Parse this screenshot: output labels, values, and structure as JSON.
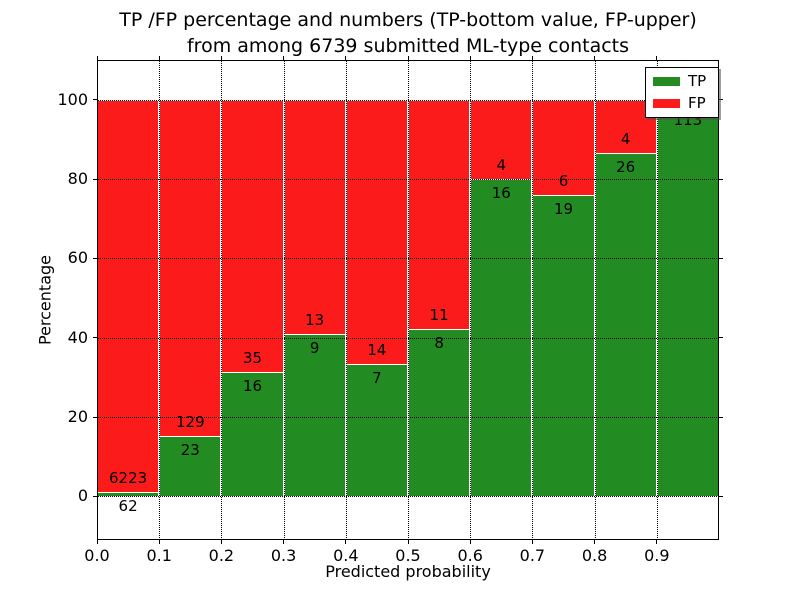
{
  "chart_data": {
    "type": "bar",
    "stacked": true,
    "normalized_to_percent": true,
    "title_line1": "TP /FP percentage and numbers (TP-bottom value, FP-upper)",
    "title_line2": "from among 6739 submitted ML-type contacts",
    "xlabel": "Predicted probability",
    "ylabel": "Percentage",
    "xlim": [
      0.0,
      1.0
    ],
    "ylim": [
      -11,
      110
    ],
    "grid": "dotted",
    "x_ticks": [
      {
        "value": 0.0,
        "label": "0.0"
      },
      {
        "value": 0.1,
        "label": "0.1"
      },
      {
        "value": 0.2,
        "label": "0.2"
      },
      {
        "value": 0.3,
        "label": "0.3"
      },
      {
        "value": 0.4,
        "label": "0.4"
      },
      {
        "value": 0.5,
        "label": "0.5"
      },
      {
        "value": 0.6,
        "label": "0.6"
      },
      {
        "value": 0.7,
        "label": "0.7"
      },
      {
        "value": 0.8,
        "label": "0.8"
      },
      {
        "value": 0.9,
        "label": "0.9"
      }
    ],
    "y_ticks": [
      {
        "value": 0,
        "label": "0"
      },
      {
        "value": 20,
        "label": "20"
      },
      {
        "value": 40,
        "label": "40"
      },
      {
        "value": 60,
        "label": "60"
      },
      {
        "value": 80,
        "label": "80"
      },
      {
        "value": 100,
        "label": "100"
      }
    ],
    "bar_width": 0.1,
    "bins": [
      {
        "x0": 0.0,
        "x1": 0.1,
        "tp": 62,
        "fp": 6223,
        "tp_label": "62",
        "fp_label": "6223"
      },
      {
        "x0": 0.1,
        "x1": 0.2,
        "tp": 23,
        "fp": 129,
        "tp_label": "23",
        "fp_label": "129"
      },
      {
        "x0": 0.2,
        "x1": 0.3,
        "tp": 16,
        "fp": 35,
        "tp_label": "16",
        "fp_label": "35"
      },
      {
        "x0": 0.3,
        "x1": 0.4,
        "tp": 9,
        "fp": 13,
        "tp_label": "9",
        "fp_label": "13"
      },
      {
        "x0": 0.4,
        "x1": 0.5,
        "tp": 7,
        "fp": 14,
        "tp_label": "7",
        "fp_label": "14"
      },
      {
        "x0": 0.5,
        "x1": 0.6,
        "tp": 8,
        "fp": 11,
        "tp_label": "8",
        "fp_label": "11"
      },
      {
        "x0": 0.6,
        "x1": 0.7,
        "tp": 16,
        "fp": 4,
        "tp_label": "16",
        "fp_label": "4"
      },
      {
        "x0": 0.7,
        "x1": 0.8,
        "tp": 19,
        "fp": 6,
        "tp_label": "19",
        "fp_label": "6"
      },
      {
        "x0": 0.8,
        "x1": 0.9,
        "tp": 26,
        "fp": 4,
        "tp_label": "26",
        "fp_label": "4"
      },
      {
        "x0": 0.9,
        "x1": 1.0,
        "tp": 113,
        "fp": null,
        "tp_label": "113",
        "fp_label": "",
        "tp_pct_estimate": 98.3
      }
    ],
    "legend": {
      "position": "upper right",
      "entries": [
        {
          "label": "TP",
          "color": "#228b22"
        },
        {
          "label": "FP",
          "color": "#fb1b1b"
        }
      ]
    },
    "colors": {
      "tp": "#228b22",
      "fp": "#fb1b1b",
      "grid": "#000000",
      "background": "#ffffff",
      "text": "#000000"
    }
  }
}
